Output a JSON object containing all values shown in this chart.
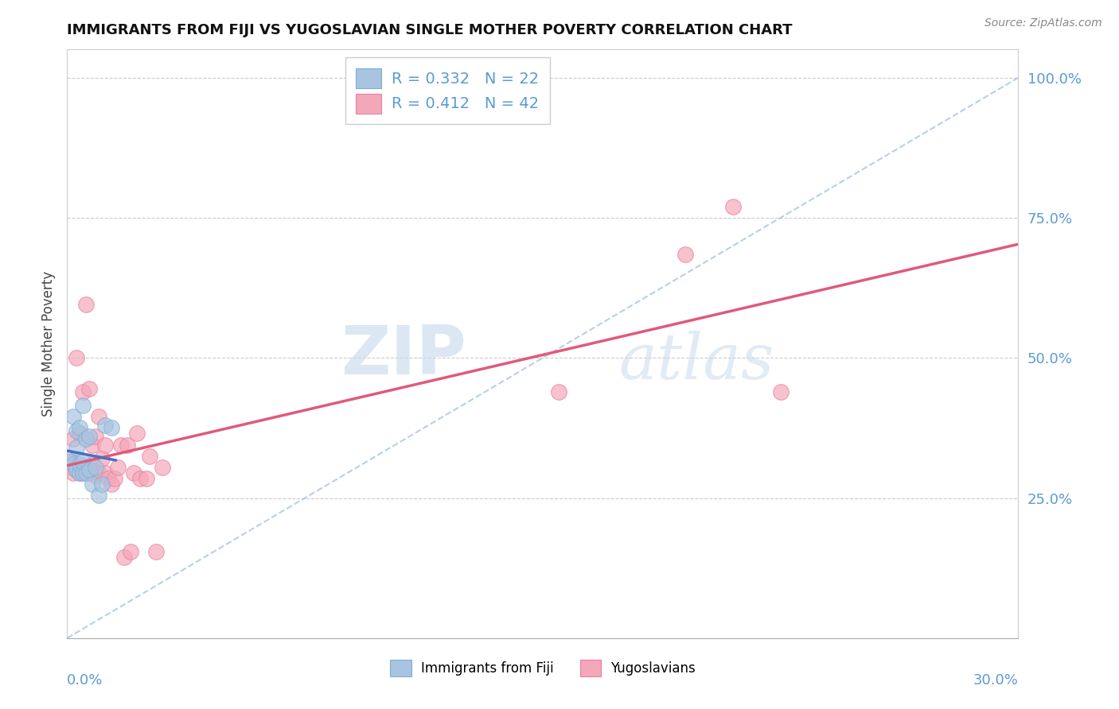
{
  "title": "IMMIGRANTS FROM FIJI VS YUGOSLAVIAN SINGLE MOTHER POVERTY CORRELATION CHART",
  "source": "Source: ZipAtlas.com",
  "ylabel": "Single Mother Poverty",
  "x_label_bottom_left": "0.0%",
  "x_label_bottom_right": "30.0%",
  "right_yticks": [
    0.0,
    0.25,
    0.5,
    0.75,
    1.0
  ],
  "right_yticklabels": [
    "",
    "25.0%",
    "50.0%",
    "75.0%",
    "100.0%"
  ],
  "xlim": [
    0.0,
    0.3
  ],
  "ylim": [
    0.0,
    1.05
  ],
  "legend_line1": "R = 0.332   N = 22",
  "legend_line2": "R = 0.412   N = 42",
  "fiji_color": "#a8c4e0",
  "yugo_color": "#f4a7b9",
  "fiji_edge_color": "#7bafd4",
  "yugo_edge_color": "#e87fa0",
  "fiji_trend_color": "#4472c4",
  "yugo_trend_color": "#e05a7a",
  "diagonal_color": "#aac8e8",
  "watermark_zip": "ZIP",
  "watermark_atlas": "atlas",
  "fiji_x": [
    0.001,
    0.002,
    0.002,
    0.003,
    0.003,
    0.003,
    0.004,
    0.004,
    0.004,
    0.005,
    0.005,
    0.005,
    0.006,
    0.006,
    0.007,
    0.007,
    0.008,
    0.009,
    0.01,
    0.011,
    0.012,
    0.014
  ],
  "fiji_y": [
    0.315,
    0.31,
    0.395,
    0.3,
    0.34,
    0.37,
    0.295,
    0.31,
    0.375,
    0.295,
    0.315,
    0.415,
    0.295,
    0.355,
    0.3,
    0.36,
    0.275,
    0.305,
    0.255,
    0.275,
    0.38,
    0.375
  ],
  "yugo_x": [
    0.001,
    0.001,
    0.002,
    0.002,
    0.003,
    0.003,
    0.004,
    0.004,
    0.005,
    0.005,
    0.006,
    0.006,
    0.007,
    0.007,
    0.008,
    0.008,
    0.009,
    0.009,
    0.01,
    0.01,
    0.011,
    0.012,
    0.012,
    0.013,
    0.014,
    0.015,
    0.016,
    0.017,
    0.018,
    0.019,
    0.02,
    0.021,
    0.022,
    0.023,
    0.025,
    0.026,
    0.028,
    0.03,
    0.155,
    0.195,
    0.21,
    0.225
  ],
  "yugo_y": [
    0.305,
    0.32,
    0.295,
    0.355,
    0.3,
    0.5,
    0.295,
    0.365,
    0.3,
    0.44,
    0.305,
    0.595,
    0.295,
    0.445,
    0.31,
    0.345,
    0.29,
    0.36,
    0.295,
    0.395,
    0.32,
    0.295,
    0.345,
    0.285,
    0.275,
    0.285,
    0.305,
    0.345,
    0.145,
    0.345,
    0.155,
    0.295,
    0.365,
    0.285,
    0.285,
    0.325,
    0.155,
    0.305,
    0.44,
    0.685,
    0.77,
    0.44
  ]
}
